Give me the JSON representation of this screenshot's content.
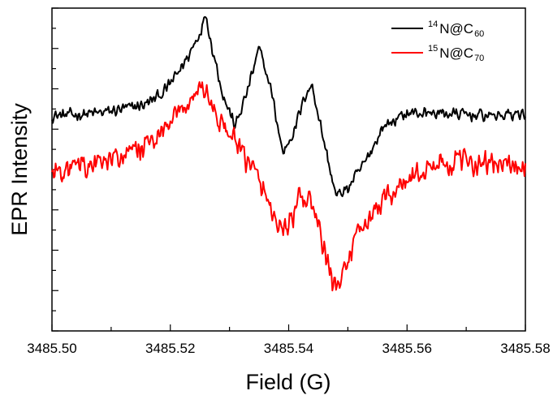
{
  "chart_data": {
    "type": "line",
    "xlabel": "Field (G)",
    "ylabel": "EPR Intensity",
    "xlim": [
      3485.5,
      3485.58
    ],
    "ylim": [
      -3.0,
      3.0
    ],
    "x_ticks": [
      "3485.50",
      "3485.52",
      "3485.54",
      "3485.56",
      "3485.58"
    ],
    "grid": false,
    "legend_position": "top-right",
    "series": [
      {
        "name": "14N@C60",
        "legend": {
          "sup": "14",
          "base": "N@C",
          "sub": "60"
        },
        "color": "#000000",
        "x": [
          3485.5,
          3485.504,
          3485.508,
          3485.512,
          3485.516,
          3485.519,
          3485.521,
          3485.523,
          3485.525,
          3485.526,
          3485.527,
          3485.529,
          3485.531,
          3485.533,
          3485.535,
          3485.537,
          3485.539,
          3485.541,
          3485.543,
          3485.544,
          3485.546,
          3485.548,
          3485.55,
          3485.553,
          3485.556,
          3485.56,
          3485.565,
          3485.57,
          3485.575,
          3485.58
        ],
        "values": [
          1.0,
          1.02,
          1.05,
          1.12,
          1.22,
          1.45,
          1.75,
          2.1,
          2.55,
          2.9,
          2.3,
          1.35,
          0.8,
          1.45,
          2.25,
          1.5,
          0.3,
          0.75,
          1.45,
          1.55,
          0.5,
          -0.5,
          -0.35,
          0.15,
          0.8,
          1.05,
          1.05,
          1.02,
          1.0,
          1.05
        ]
      },
      {
        "name": "15N@C70",
        "legend": {
          "sup": "15",
          "base": "N@C",
          "sub": "70"
        },
        "color": "#ff0000",
        "x": [
          3485.5,
          3485.505,
          3485.51,
          3485.514,
          3485.518,
          3485.521,
          3485.523,
          3485.525,
          3485.526,
          3485.528,
          3485.53,
          3485.532,
          3485.534,
          3485.536,
          3485.538,
          3485.54,
          3485.542,
          3485.544,
          3485.546,
          3485.548,
          3485.55,
          3485.553,
          3485.556,
          3485.56,
          3485.565,
          3485.57,
          3485.575,
          3485.58
        ],
        "values": [
          -0.05,
          0.05,
          0.15,
          0.35,
          0.6,
          0.95,
          1.25,
          1.55,
          1.45,
          0.95,
          0.65,
          0.3,
          0.0,
          -0.45,
          -1.0,
          -1.1,
          -0.5,
          -0.65,
          -1.5,
          -2.3,
          -1.6,
          -1.0,
          -0.55,
          -0.2,
          0.1,
          0.15,
          0.1,
          0.05
        ]
      }
    ]
  }
}
